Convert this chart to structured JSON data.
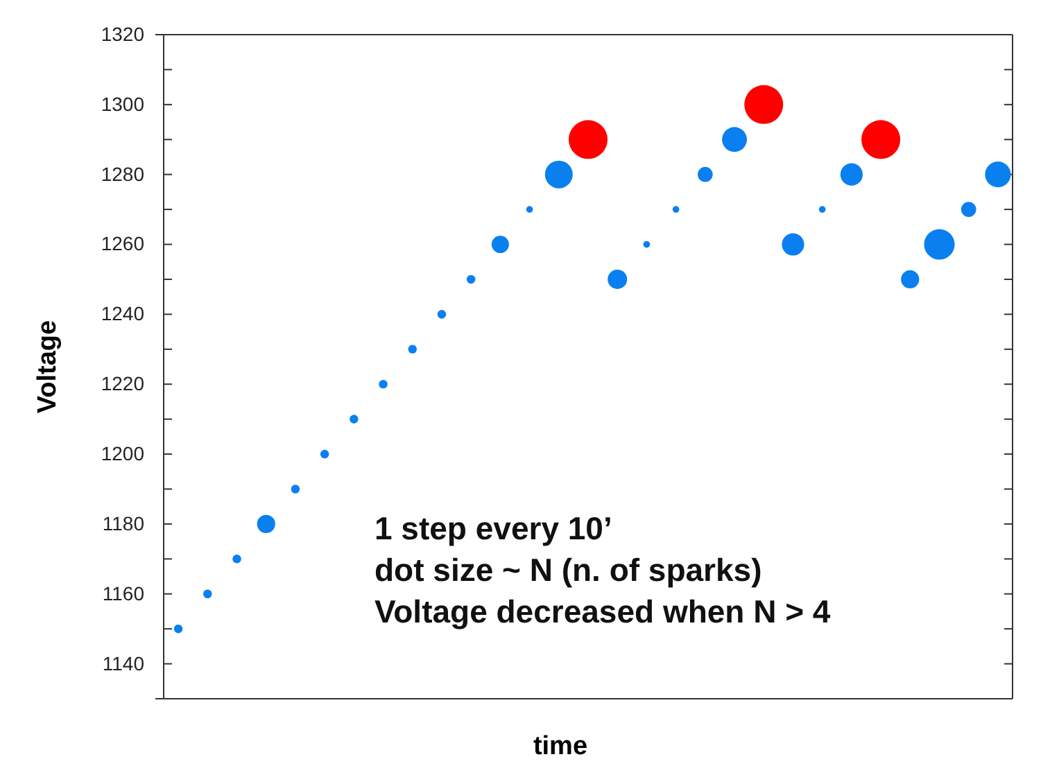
{
  "chart_data": {
    "type": "bubble",
    "xlabel": "time",
    "ylabel": "Voltage",
    "categories": [
      null,
      null,
      null,
      null,
      null,
      null,
      null,
      null,
      null,
      null,
      null,
      null,
      null,
      null,
      null,
      null,
      null,
      null,
      null,
      null,
      null,
      null,
      null,
      null,
      null,
      null,
      null,
      null,
      null
    ],
    "series": [
      {
        "color": "#0a80f0",
        "values": [
          1150,
          1160,
          1170,
          1180,
          1190,
          1200,
          1210,
          1220,
          1230,
          1240,
          1250,
          1260,
          1270,
          1280,
          null,
          1250,
          1260,
          1270,
          1280,
          1290,
          null,
          1260,
          1270,
          1280,
          null,
          1250,
          1260,
          1270,
          1280
        ],
        "sizes": [
          0.05,
          0.05,
          0.05,
          0.22,
          0.05,
          0.05,
          0.05,
          0.05,
          0.05,
          0.05,
          0.05,
          0.2,
          0.03,
          0.51,
          null,
          0.25,
          0.03,
          0.03,
          0.15,
          0.41,
          null,
          0.33,
          0.03,
          0.33,
          null,
          0.22,
          0.62,
          0.15,
          0.44
        ]
      },
      {
        "color": "#ff0000",
        "values": [
          null,
          null,
          null,
          null,
          null,
          null,
          null,
          null,
          null,
          null,
          null,
          null,
          null,
          null,
          1290,
          null,
          null,
          null,
          null,
          null,
          1300,
          null,
          null,
          null,
          1290,
          null,
          null,
          null,
          null
        ],
        "sizes": [
          null,
          null,
          null,
          null,
          null,
          null,
          null,
          null,
          null,
          null,
          null,
          null,
          null,
          null,
          1,
          null,
          null,
          null,
          null,
          null,
          1,
          null,
          null,
          null,
          1,
          null,
          null,
          null,
          null
        ]
      }
    ],
    "ylim": [
      1130,
      1320
    ],
    "yticks": [
      1140,
      {
        "value": 1150,
        "label": null
      },
      1160,
      {
        "value": 1170,
        "label": null
      },
      1180,
      {
        "value": 1190,
        "label": null
      },
      1200,
      {
        "value": 1210,
        "label": null
      },
      1220,
      {
        "value": 1230,
        "label": null
      },
      1240,
      {
        "value": 1250,
        "label": null
      },
      1260,
      {
        "value": 1270,
        "label": null
      },
      1280,
      {
        "value": 1290,
        "label": null
      },
      1300,
      {
        "value": 1310,
        "label": null
      },
      1320
    ],
    "grid": false,
    "annotations": [
      "1 step every 10’",
      "dot size ~  N (n. of sparks)",
      "Voltage decreased when N > 4"
    ]
  }
}
